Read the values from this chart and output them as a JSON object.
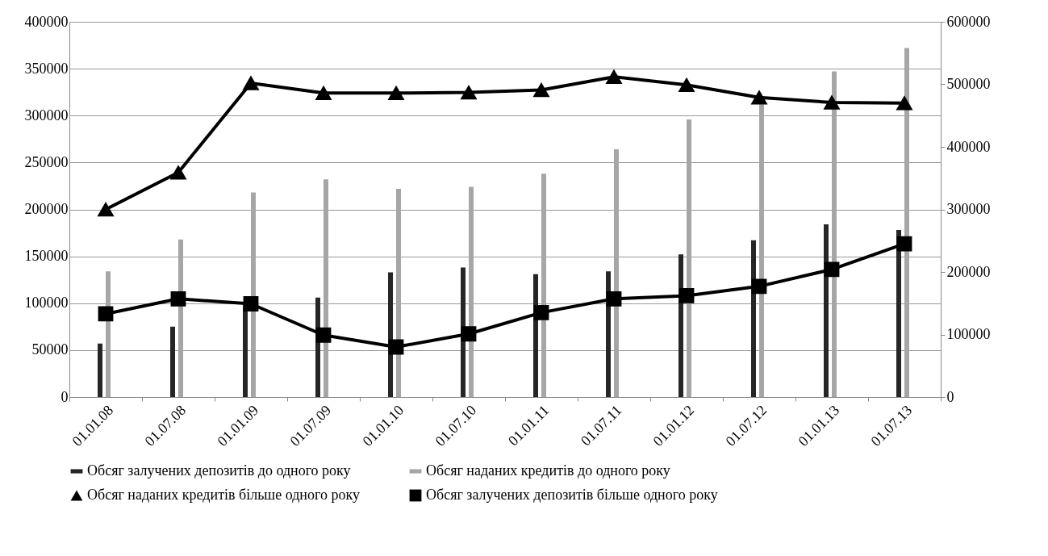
{
  "chart_data": {
    "type": "bar",
    "categories": [
      "01.01.08",
      "01.07.08",
      "01.01.09",
      "01.07.09",
      "01.01.10",
      "01.07.10",
      "01.01.11",
      "01.07.11",
      "01.01.12",
      "01.07.12",
      "01.01.13",
      "01.07.13"
    ],
    "series": [
      {
        "name": "Обсяг залучених депозитів до одного року",
        "type": "bar",
        "color": "#262626",
        "values": [
          57000,
          75000,
          100000,
          106000,
          133000,
          138000,
          131000,
          134000,
          152000,
          167000,
          184000,
          178000
        ]
      },
      {
        "name": "Обсяг наданих кредитів до одного року",
        "type": "bar",
        "color": "#a6a6a6",
        "values": [
          134000,
          168000,
          218000,
          232000,
          222000,
          224000,
          238000,
          264000,
          296000,
          312000,
          347000,
          372000
        ]
      },
      {
        "name": "Обсяг наданих кредитів більше одного року",
        "type": "line",
        "axis": "y2",
        "marker": "triangle",
        "color": "#000000",
        "values": [
          300000,
          359000,
          502000,
          486000,
          486000,
          487000,
          491000,
          512000,
          499000,
          479000,
          471000,
          470000
        ]
      },
      {
        "name": "Обсяг залучених депозитів більше одного року",
        "type": "line",
        "axis": "y2",
        "marker": "square",
        "color": "#000000",
        "values": [
          133000,
          157000,
          149000,
          99000,
          80000,
          101000,
          135000,
          157000,
          162000,
          177000,
          204000,
          245000
        ]
      }
    ],
    "ylim": [
      0,
      400000
    ],
    "yticks": [
      0,
      50000,
      100000,
      150000,
      200000,
      250000,
      300000,
      350000,
      400000
    ],
    "y2lim": [
      0,
      600000
    ],
    "y2ticks": [
      0,
      100000,
      200000,
      300000,
      400000,
      500000,
      600000
    ],
    "grid": "y",
    "legend": "bottom",
    "line_style": "solid"
  }
}
